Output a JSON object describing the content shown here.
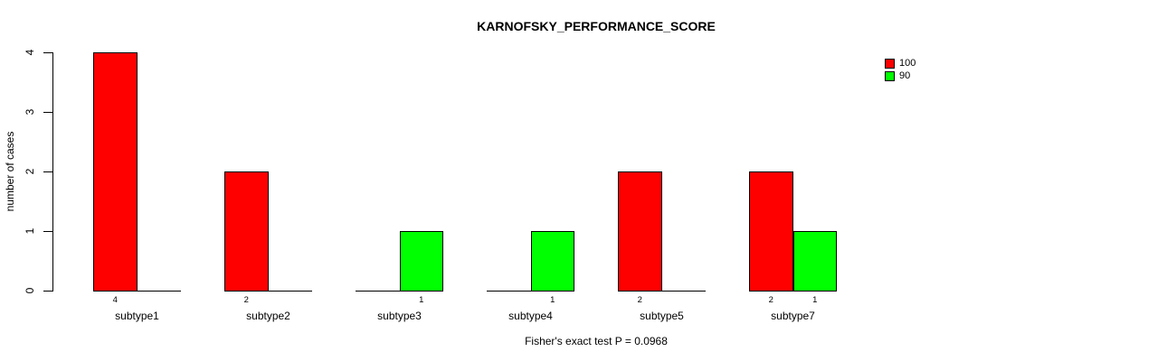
{
  "title": "KARNOFSKY_PERFORMANCE_SCORE",
  "footer_annotation": "Fisher's exact test P = 0.0968",
  "y_axis_label": "number of cases",
  "legend": {
    "items": [
      {
        "label": "100",
        "color": "#FF0000"
      },
      {
        "label": "90",
        "color": "#00FF00"
      }
    ]
  },
  "chart_data": {
    "type": "bar",
    "title": "KARNOFSKY_PERFORMANCE_SCORE",
    "categories": [
      "subtype1",
      "subtype2",
      "subtype3",
      "subtype4",
      "subtype5",
      "subtype7"
    ],
    "series": [
      {
        "name": "100",
        "color": "#FF0000",
        "values": [
          4,
          2,
          0,
          0,
          2,
          2
        ]
      },
      {
        "name": "90",
        "color": "#00FF00",
        "values": [
          0,
          0,
          1,
          1,
          0,
          1
        ]
      }
    ],
    "xlabel": "",
    "ylabel": "number of cases",
    "ylim": [
      0,
      4
    ],
    "yticks": [
      0,
      1,
      2,
      3,
      4
    ],
    "grid": false,
    "legend_position": "top-right",
    "bar_count_labels": "value shown under each nonzero bar",
    "annotation": "Fisher's exact test P = 0.0968",
    "background": "#FFFFFF",
    "bar_border_color": "#000000"
  }
}
